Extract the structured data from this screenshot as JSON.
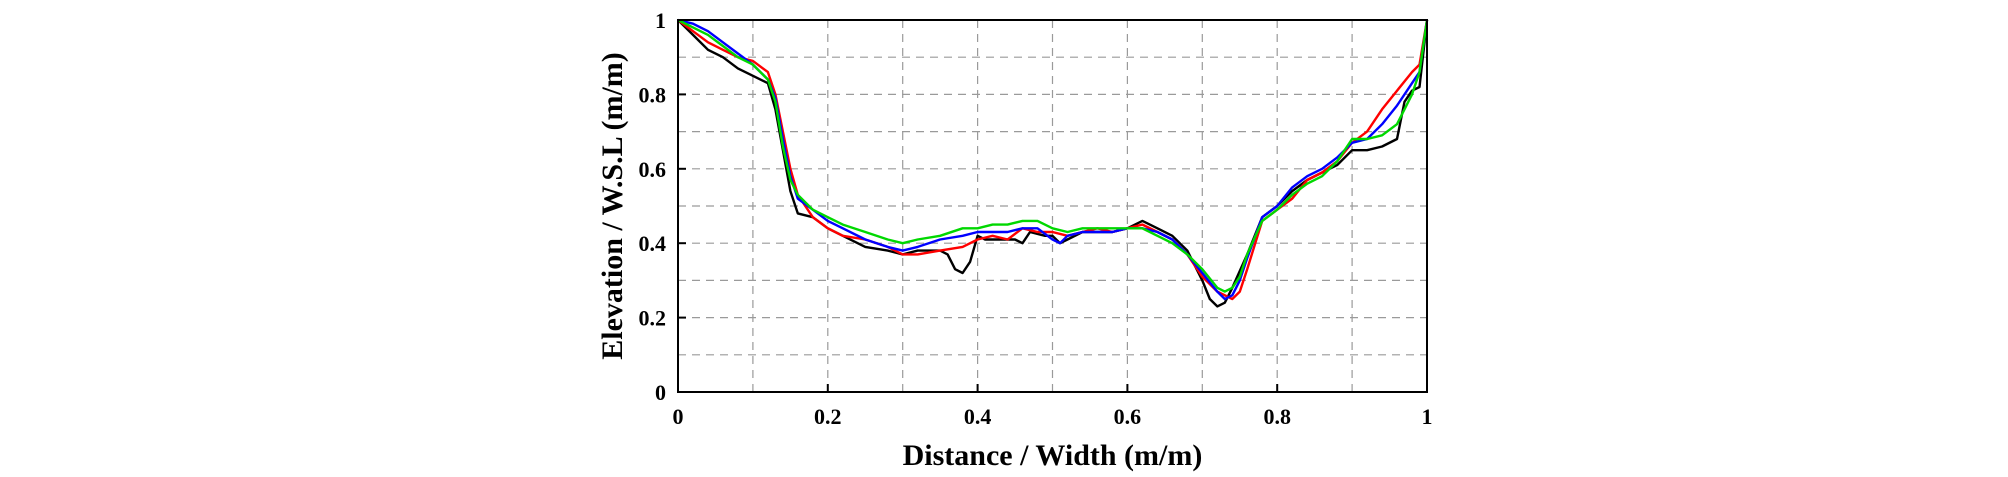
{
  "chart_data": {
    "type": "line",
    "title": "",
    "xlabel": "Distance / Width (m/m)",
    "ylabel": "Elevation / W.S.L (m/m)",
    "xlim": [
      0,
      1
    ],
    "ylim": [
      0,
      1
    ],
    "x_ticks": [
      "0",
      "0.2",
      "0.4",
      "0.6",
      "0.8",
      "1"
    ],
    "y_ticks": [
      "0",
      "0.2",
      "0.4",
      "0.6",
      "0.8",
      "1"
    ],
    "grid": true,
    "legend": "none",
    "series": [
      {
        "color": "#000000",
        "points": [
          [
            0,
            1
          ],
          [
            0.02,
            0.96
          ],
          [
            0.04,
            0.92
          ],
          [
            0.06,
            0.9
          ],
          [
            0.08,
            0.87
          ],
          [
            0.1,
            0.85
          ],
          [
            0.12,
            0.83
          ],
          [
            0.13,
            0.76
          ],
          [
            0.14,
            0.65
          ],
          [
            0.15,
            0.54
          ],
          [
            0.16,
            0.48
          ],
          [
            0.18,
            0.47
          ],
          [
            0.2,
            0.44
          ],
          [
            0.22,
            0.42
          ],
          [
            0.25,
            0.39
          ],
          [
            0.28,
            0.38
          ],
          [
            0.3,
            0.37
          ],
          [
            0.32,
            0.38
          ],
          [
            0.35,
            0.38
          ],
          [
            0.36,
            0.37
          ],
          [
            0.37,
            0.33
          ],
          [
            0.38,
            0.32
          ],
          [
            0.39,
            0.35
          ],
          [
            0.4,
            0.42
          ],
          [
            0.41,
            0.41
          ],
          [
            0.43,
            0.41
          ],
          [
            0.45,
            0.41
          ],
          [
            0.46,
            0.4
          ],
          [
            0.47,
            0.43
          ],
          [
            0.49,
            0.42
          ],
          [
            0.5,
            0.42
          ],
          [
            0.51,
            0.4
          ],
          [
            0.52,
            0.41
          ],
          [
            0.54,
            0.43
          ],
          [
            0.56,
            0.43
          ],
          [
            0.58,
            0.43
          ],
          [
            0.6,
            0.44
          ],
          [
            0.62,
            0.46
          ],
          [
            0.64,
            0.44
          ],
          [
            0.66,
            0.42
          ],
          [
            0.68,
            0.38
          ],
          [
            0.7,
            0.3
          ],
          [
            0.71,
            0.25
          ],
          [
            0.72,
            0.23
          ],
          [
            0.73,
            0.24
          ],
          [
            0.74,
            0.28
          ],
          [
            0.76,
            0.37
          ],
          [
            0.78,
            0.47
          ],
          [
            0.8,
            0.5
          ],
          [
            0.82,
            0.54
          ],
          [
            0.84,
            0.57
          ],
          [
            0.86,
            0.59
          ],
          [
            0.88,
            0.61
          ],
          [
            0.9,
            0.65
          ],
          [
            0.92,
            0.65
          ],
          [
            0.94,
            0.66
          ],
          [
            0.96,
            0.68
          ],
          [
            0.97,
            0.78
          ],
          [
            0.98,
            0.81
          ],
          [
            0.99,
            0.82
          ],
          [
            1,
            1
          ]
        ]
      },
      {
        "color": "#ff0000",
        "points": [
          [
            0,
            1
          ],
          [
            0.02,
            0.97
          ],
          [
            0.04,
            0.94
          ],
          [
            0.06,
            0.92
          ],
          [
            0.08,
            0.9
          ],
          [
            0.1,
            0.89
          ],
          [
            0.12,
            0.86
          ],
          [
            0.13,
            0.8
          ],
          [
            0.14,
            0.7
          ],
          [
            0.15,
            0.6
          ],
          [
            0.16,
            0.53
          ],
          [
            0.18,
            0.47
          ],
          [
            0.2,
            0.44
          ],
          [
            0.22,
            0.42
          ],
          [
            0.25,
            0.41
          ],
          [
            0.28,
            0.39
          ],
          [
            0.3,
            0.37
          ],
          [
            0.32,
            0.37
          ],
          [
            0.35,
            0.38
          ],
          [
            0.38,
            0.39
          ],
          [
            0.4,
            0.41
          ],
          [
            0.42,
            0.42
          ],
          [
            0.44,
            0.41
          ],
          [
            0.46,
            0.44
          ],
          [
            0.48,
            0.43
          ],
          [
            0.5,
            0.43
          ],
          [
            0.52,
            0.42
          ],
          [
            0.54,
            0.43
          ],
          [
            0.56,
            0.44
          ],
          [
            0.58,
            0.43
          ],
          [
            0.6,
            0.44
          ],
          [
            0.62,
            0.45
          ],
          [
            0.64,
            0.43
          ],
          [
            0.66,
            0.41
          ],
          [
            0.68,
            0.37
          ],
          [
            0.7,
            0.31
          ],
          [
            0.72,
            0.27
          ],
          [
            0.74,
            0.25
          ],
          [
            0.75,
            0.27
          ],
          [
            0.76,
            0.33
          ],
          [
            0.78,
            0.46
          ],
          [
            0.8,
            0.49
          ],
          [
            0.82,
            0.52
          ],
          [
            0.84,
            0.57
          ],
          [
            0.86,
            0.59
          ],
          [
            0.88,
            0.62
          ],
          [
            0.9,
            0.67
          ],
          [
            0.92,
            0.7
          ],
          [
            0.94,
            0.76
          ],
          [
            0.96,
            0.81
          ],
          [
            0.98,
            0.86
          ],
          [
            0.99,
            0.88
          ],
          [
            1,
            1
          ]
        ]
      },
      {
        "color": "#0000ff",
        "points": [
          [
            0,
            1
          ],
          [
            0.02,
            0.99
          ],
          [
            0.04,
            0.97
          ],
          [
            0.06,
            0.94
          ],
          [
            0.08,
            0.91
          ],
          [
            0.1,
            0.88
          ],
          [
            0.12,
            0.84
          ],
          [
            0.13,
            0.79
          ],
          [
            0.14,
            0.68
          ],
          [
            0.15,
            0.58
          ],
          [
            0.16,
            0.52
          ],
          [
            0.18,
            0.49
          ],
          [
            0.2,
            0.46
          ],
          [
            0.22,
            0.44
          ],
          [
            0.25,
            0.41
          ],
          [
            0.28,
            0.39
          ],
          [
            0.3,
            0.38
          ],
          [
            0.32,
            0.39
          ],
          [
            0.35,
            0.41
          ],
          [
            0.38,
            0.42
          ],
          [
            0.4,
            0.43
          ],
          [
            0.42,
            0.43
          ],
          [
            0.44,
            0.43
          ],
          [
            0.46,
            0.44
          ],
          [
            0.48,
            0.44
          ],
          [
            0.5,
            0.41
          ],
          [
            0.51,
            0.4
          ],
          [
            0.52,
            0.42
          ],
          [
            0.54,
            0.43
          ],
          [
            0.56,
            0.43
          ],
          [
            0.58,
            0.43
          ],
          [
            0.6,
            0.44
          ],
          [
            0.62,
            0.44
          ],
          [
            0.64,
            0.43
          ],
          [
            0.66,
            0.41
          ],
          [
            0.68,
            0.37
          ],
          [
            0.7,
            0.32
          ],
          [
            0.72,
            0.27
          ],
          [
            0.73,
            0.25
          ],
          [
            0.74,
            0.26
          ],
          [
            0.75,
            0.3
          ],
          [
            0.76,
            0.36
          ],
          [
            0.78,
            0.47
          ],
          [
            0.8,
            0.5
          ],
          [
            0.82,
            0.55
          ],
          [
            0.84,
            0.58
          ],
          [
            0.86,
            0.6
          ],
          [
            0.88,
            0.63
          ],
          [
            0.9,
            0.67
          ],
          [
            0.92,
            0.68
          ],
          [
            0.94,
            0.72
          ],
          [
            0.96,
            0.77
          ],
          [
            0.98,
            0.83
          ],
          [
            0.99,
            0.86
          ],
          [
            1,
            1
          ]
        ]
      },
      {
        "color": "#00d800",
        "points": [
          [
            0,
            1
          ],
          [
            0.02,
            0.98
          ],
          [
            0.04,
            0.96
          ],
          [
            0.06,
            0.93
          ],
          [
            0.08,
            0.9
          ],
          [
            0.1,
            0.88
          ],
          [
            0.12,
            0.84
          ],
          [
            0.13,
            0.78
          ],
          [
            0.14,
            0.66
          ],
          [
            0.15,
            0.57
          ],
          [
            0.16,
            0.53
          ],
          [
            0.18,
            0.49
          ],
          [
            0.2,
            0.47
          ],
          [
            0.22,
            0.45
          ],
          [
            0.25,
            0.43
          ],
          [
            0.28,
            0.41
          ],
          [
            0.3,
            0.4
          ],
          [
            0.32,
            0.41
          ],
          [
            0.35,
            0.42
          ],
          [
            0.38,
            0.44
          ],
          [
            0.4,
            0.44
          ],
          [
            0.42,
            0.45
          ],
          [
            0.44,
            0.45
          ],
          [
            0.46,
            0.46
          ],
          [
            0.48,
            0.46
          ],
          [
            0.5,
            0.44
          ],
          [
            0.52,
            0.43
          ],
          [
            0.54,
            0.44
          ],
          [
            0.56,
            0.44
          ],
          [
            0.58,
            0.44
          ],
          [
            0.6,
            0.44
          ],
          [
            0.62,
            0.44
          ],
          [
            0.64,
            0.42
          ],
          [
            0.66,
            0.4
          ],
          [
            0.68,
            0.37
          ],
          [
            0.7,
            0.33
          ],
          [
            0.72,
            0.28
          ],
          [
            0.73,
            0.27
          ],
          [
            0.74,
            0.28
          ],
          [
            0.75,
            0.31
          ],
          [
            0.76,
            0.37
          ],
          [
            0.78,
            0.46
          ],
          [
            0.8,
            0.49
          ],
          [
            0.82,
            0.53
          ],
          [
            0.84,
            0.56
          ],
          [
            0.86,
            0.58
          ],
          [
            0.88,
            0.62
          ],
          [
            0.9,
            0.68
          ],
          [
            0.92,
            0.68
          ],
          [
            0.94,
            0.69
          ],
          [
            0.96,
            0.72
          ],
          [
            0.98,
            0.8
          ],
          [
            0.99,
            0.86
          ],
          [
            1,
            1
          ]
        ]
      }
    ]
  }
}
